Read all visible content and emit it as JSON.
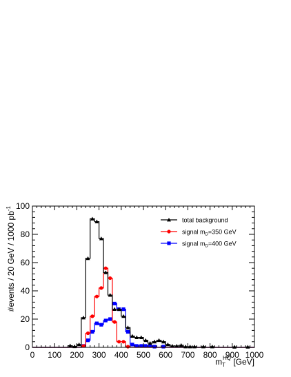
{
  "chart_data": {
    "type": "line",
    "xlabel_main": "m",
    "xlabel_sub": "T",
    "xlabel_sup": "HQ",
    "xlabel_unit": " [GeV]",
    "ylabel_main": "#events / 20 GeV / 1000 pb",
    "ylabel_sup": "-1",
    "xlim": [
      0,
      1000
    ],
    "ylim": [
      0,
      100
    ],
    "xticks": [
      0,
      100,
      200,
      300,
      400,
      500,
      600,
      700,
      800,
      900,
      1000
    ],
    "yticks": [
      0,
      20,
      40,
      60,
      80,
      100
    ],
    "legend_position": "top-right",
    "bin_width": 20,
    "x": [
      10,
      30,
      50,
      70,
      90,
      110,
      130,
      150,
      170,
      190,
      210,
      230,
      250,
      270,
      290,
      310,
      330,
      350,
      370,
      390,
      410,
      430,
      450,
      470,
      490,
      510,
      530,
      550,
      570,
      590,
      610,
      630,
      650,
      670,
      690,
      710,
      730,
      750,
      770,
      790,
      810,
      830,
      850,
      870,
      890,
      910,
      930,
      950,
      970,
      990
    ],
    "series": [
      {
        "key": "bkg",
        "name_pre": "total background",
        "name_sub": "",
        "name_post": "",
        "color": "#000000",
        "marker": "triangle",
        "values": [
          0,
          0,
          0,
          0,
          0,
          0,
          0,
          0,
          1.2,
          0.6,
          2,
          21,
          63,
          91,
          89,
          77,
          53,
          37,
          27,
          27,
          22,
          14,
          8,
          7,
          7,
          5,
          3,
          4,
          5,
          4,
          2,
          1,
          1,
          1.5,
          0.5,
          0.5,
          0.5,
          0,
          0.5,
          0,
          0.5,
          0,
          0,
          0,
          0,
          0.3,
          0,
          0,
          0.3,
          0
        ]
      },
      {
        "key": "sig350",
        "name_pre": "signal m",
        "name_sub": "D",
        "name_post": "=350 GeV",
        "color": "#ff0000",
        "marker": "circle",
        "values": [
          0,
          0,
          0,
          0,
          0,
          0,
          0,
          0,
          0,
          0,
          0,
          1,
          10,
          22,
          36,
          42,
          56,
          49,
          18,
          4,
          4,
          0.5,
          0,
          0,
          0,
          0,
          0,
          0,
          0,
          0,
          0,
          0,
          0,
          0,
          0,
          0,
          0,
          0,
          0,
          0,
          0,
          0,
          0,
          0,
          0,
          0,
          0,
          0,
          0,
          0
        ]
      },
      {
        "key": "sig400",
        "name_pre": "signal m",
        "name_sub": "D",
        "name_post": "=400 GeV",
        "color": "#0000ff",
        "marker": "square",
        "values": [
          0,
          0,
          0,
          0,
          0,
          0,
          0,
          0,
          0,
          0,
          0,
          1,
          5,
          11,
          17,
          16,
          19,
          20,
          31,
          27,
          27,
          11,
          2,
          1,
          1,
          1,
          1,
          0.5,
          0,
          0.5,
          0,
          0,
          0,
          0,
          0,
          0,
          0,
          0,
          0,
          0,
          0,
          0,
          0,
          0,
          0,
          0,
          0,
          0,
          0,
          0
        ]
      }
    ]
  }
}
